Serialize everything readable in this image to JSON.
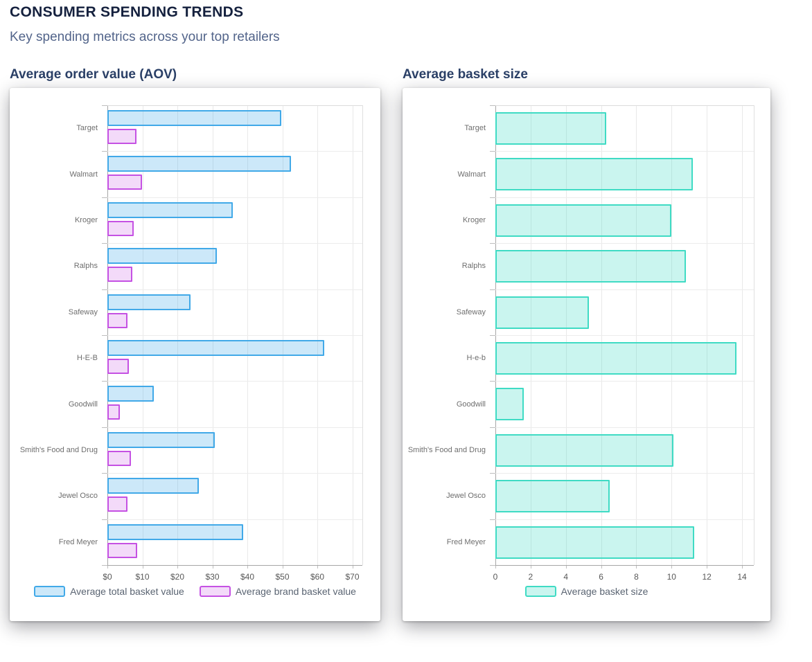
{
  "header": {
    "title": "CONSUMER SPENDING TRENDS",
    "subtitle": "Key spending metrics across your top retailers"
  },
  "chart_data": [
    {
      "type": "bar",
      "orientation": "horizontal",
      "title": "Average order value (AOV)",
      "categories": [
        "Target",
        "Walmart",
        "Kroger",
        "Ralphs",
        "Safeway",
        "H-E-B",
        "Goodwill",
        "Smith's Food and Drug",
        "Jewel Osco",
        "Fred Meyer"
      ],
      "series": [
        {
          "name": "Average total basket value",
          "border_color": "#41a9e8",
          "fill_color": "rgba(65,169,232,0.27)",
          "values": [
            49.8,
            52.5,
            35.8,
            31.3,
            23.8,
            62.0,
            13.3,
            30.7,
            26.1,
            38.8
          ]
        },
        {
          "name": "Average brand basket value",
          "border_color": "#c551e3",
          "fill_color": "rgba(197,81,227,0.21)",
          "values": [
            8.3,
            9.9,
            7.5,
            7.1,
            5.7,
            6.1,
            3.5,
            6.7,
            5.8,
            8.5
          ]
        }
      ],
      "x_ticks": [
        "$0",
        "$10",
        "$20",
        "$30",
        "$40",
        "$50",
        "$60",
        "$70"
      ],
      "xlim": [
        0,
        70
      ],
      "ylabel": "",
      "xlabel": "",
      "grid": true,
      "legend_position": "bottom"
    },
    {
      "type": "bar",
      "orientation": "horizontal",
      "title": "Average basket size",
      "categories": [
        "Target",
        "Walmart",
        "Kroger",
        "Ralphs",
        "Safeway",
        "H-e-b",
        "Goodwill",
        "Smith's Food and Drug",
        "Jewel Osco",
        "Fred Meyer"
      ],
      "series": [
        {
          "name": "Average basket size",
          "border_color": "#3fdbc4",
          "fill_color": "rgba(63,219,196,0.28)",
          "values": [
            6.3,
            11.2,
            10.0,
            10.8,
            5.3,
            13.7,
            1.6,
            10.1,
            6.5,
            11.3
          ]
        }
      ],
      "x_ticks": [
        "0",
        "2",
        "4",
        "6",
        "8",
        "10",
        "12",
        "14"
      ],
      "xlim": [
        0,
        14
      ],
      "ylabel": "",
      "xlabel": "",
      "grid": true,
      "legend_position": "bottom"
    }
  ]
}
